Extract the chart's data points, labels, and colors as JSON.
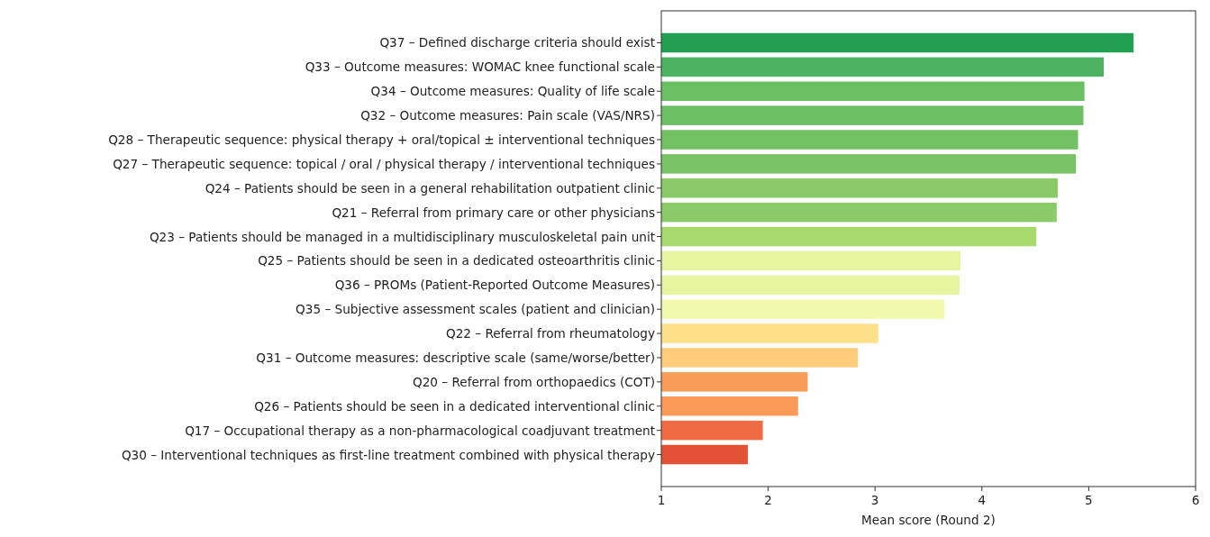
{
  "chart_data": {
    "type": "bar",
    "orientation": "horizontal",
    "xlabel": "Mean score (Round 2)",
    "categories": [
      "Q37 – Defined discharge criteria should exist",
      "Q33 – Outcome measures: WOMAC knee functional scale",
      "Q34 – Outcome measures: Quality of life scale",
      "Q32 – Outcome measures: Pain scale (VAS/NRS)",
      "Q28 – Therapeutic sequence: physical therapy + oral/topical ± interventional techniques",
      "Q27 – Therapeutic sequence: topical / oral / physical therapy / interventional techniques",
      "Q24 – Patients should be seen in a general rehabilitation outpatient clinic",
      "Q21 – Referral from primary care or other physicians",
      "Q23 – Patients should be managed in a multidisciplinary musculoskeletal pain unit",
      "Q25 – Patients should be seen in a dedicated osteoarthritis clinic",
      "Q36 – PROMs (Patient-Reported Outcome Measures)",
      "Q35 – Subjective assessment scales (patient and clinician)",
      "Q22 – Referral from rheumatology",
      "Q31 – Outcome measures: descriptive scale (same/worse/better)",
      "Q20 – Referral from orthopaedics (COT)",
      "Q26 – Patients should be seen in a dedicated interventional clinic",
      "Q17 – Occupational therapy as a non-pharmacological coadjuvant treatment",
      "Q30 – Interventional techniques as first-line treatment combined with physical therapy"
    ],
    "values": [
      5.42,
      5.14,
      4.96,
      4.95,
      4.9,
      4.88,
      4.71,
      4.7,
      4.51,
      3.8,
      3.79,
      3.65,
      3.03,
      2.84,
      2.37,
      2.28,
      1.95,
      1.81
    ],
    "colors": [
      "#22a052",
      "#4db262",
      "#6abf63",
      "#6abf63",
      "#72c163",
      "#77c365",
      "#8bcb67",
      "#8bcb67",
      "#a6da6c",
      "#e6f4a0",
      "#e6f4a0",
      "#f1f9ae",
      "#fee08b",
      "#fecc7b",
      "#f99c58",
      "#f99a58",
      "#f06b43",
      "#e45236"
    ],
    "xlim": [
      1,
      6
    ],
    "xticks": [
      1,
      2,
      3,
      4,
      5,
      6
    ],
    "grid": false
  }
}
